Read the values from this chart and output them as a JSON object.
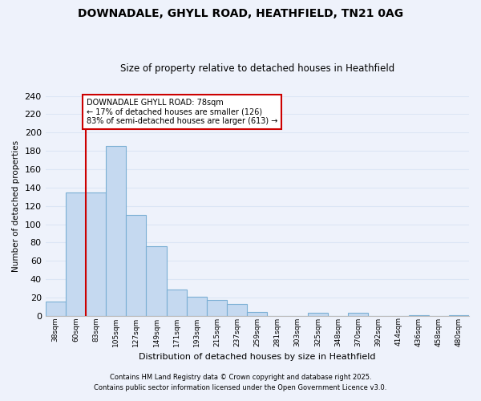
{
  "title": "DOWNADALE, GHYLL ROAD, HEATHFIELD, TN21 0AG",
  "subtitle": "Size of property relative to detached houses in Heathfield",
  "xlabel": "Distribution of detached houses by size in Heathfield",
  "ylabel": "Number of detached properties",
  "bar_labels": [
    "38sqm",
    "60sqm",
    "83sqm",
    "105sqm",
    "127sqm",
    "149sqm",
    "171sqm",
    "193sqm",
    "215sqm",
    "237sqm",
    "259sqm",
    "281sqm",
    "303sqm",
    "325sqm",
    "348sqm",
    "370sqm",
    "392sqm",
    "414sqm",
    "436sqm",
    "458sqm",
    "480sqm"
  ],
  "bar_values": [
    16,
    135,
    135,
    185,
    110,
    76,
    29,
    21,
    17,
    13,
    4,
    0,
    0,
    3,
    0,
    3,
    0,
    0,
    1,
    0,
    1
  ],
  "bar_color": "#c5d9f0",
  "bar_edge_color": "#7bafd4",
  "ylim": [
    0,
    240
  ],
  "yticks": [
    0,
    20,
    40,
    60,
    80,
    100,
    120,
    140,
    160,
    180,
    200,
    220,
    240
  ],
  "marker_bar_index": 2,
  "marker_label_line1": "DOWNADALE GHYLL ROAD: 78sqm",
  "marker_label_line2": "← 17% of detached houses are smaller (126)",
  "marker_label_line3": "83% of semi-detached houses are larger (613) →",
  "marker_color": "#cc0000",
  "bg_color": "#eef2fb",
  "grid_color": "#dce6f5",
  "footnote1": "Contains HM Land Registry data © Crown copyright and database right 2025.",
  "footnote2": "Contains public sector information licensed under the Open Government Licence v3.0."
}
